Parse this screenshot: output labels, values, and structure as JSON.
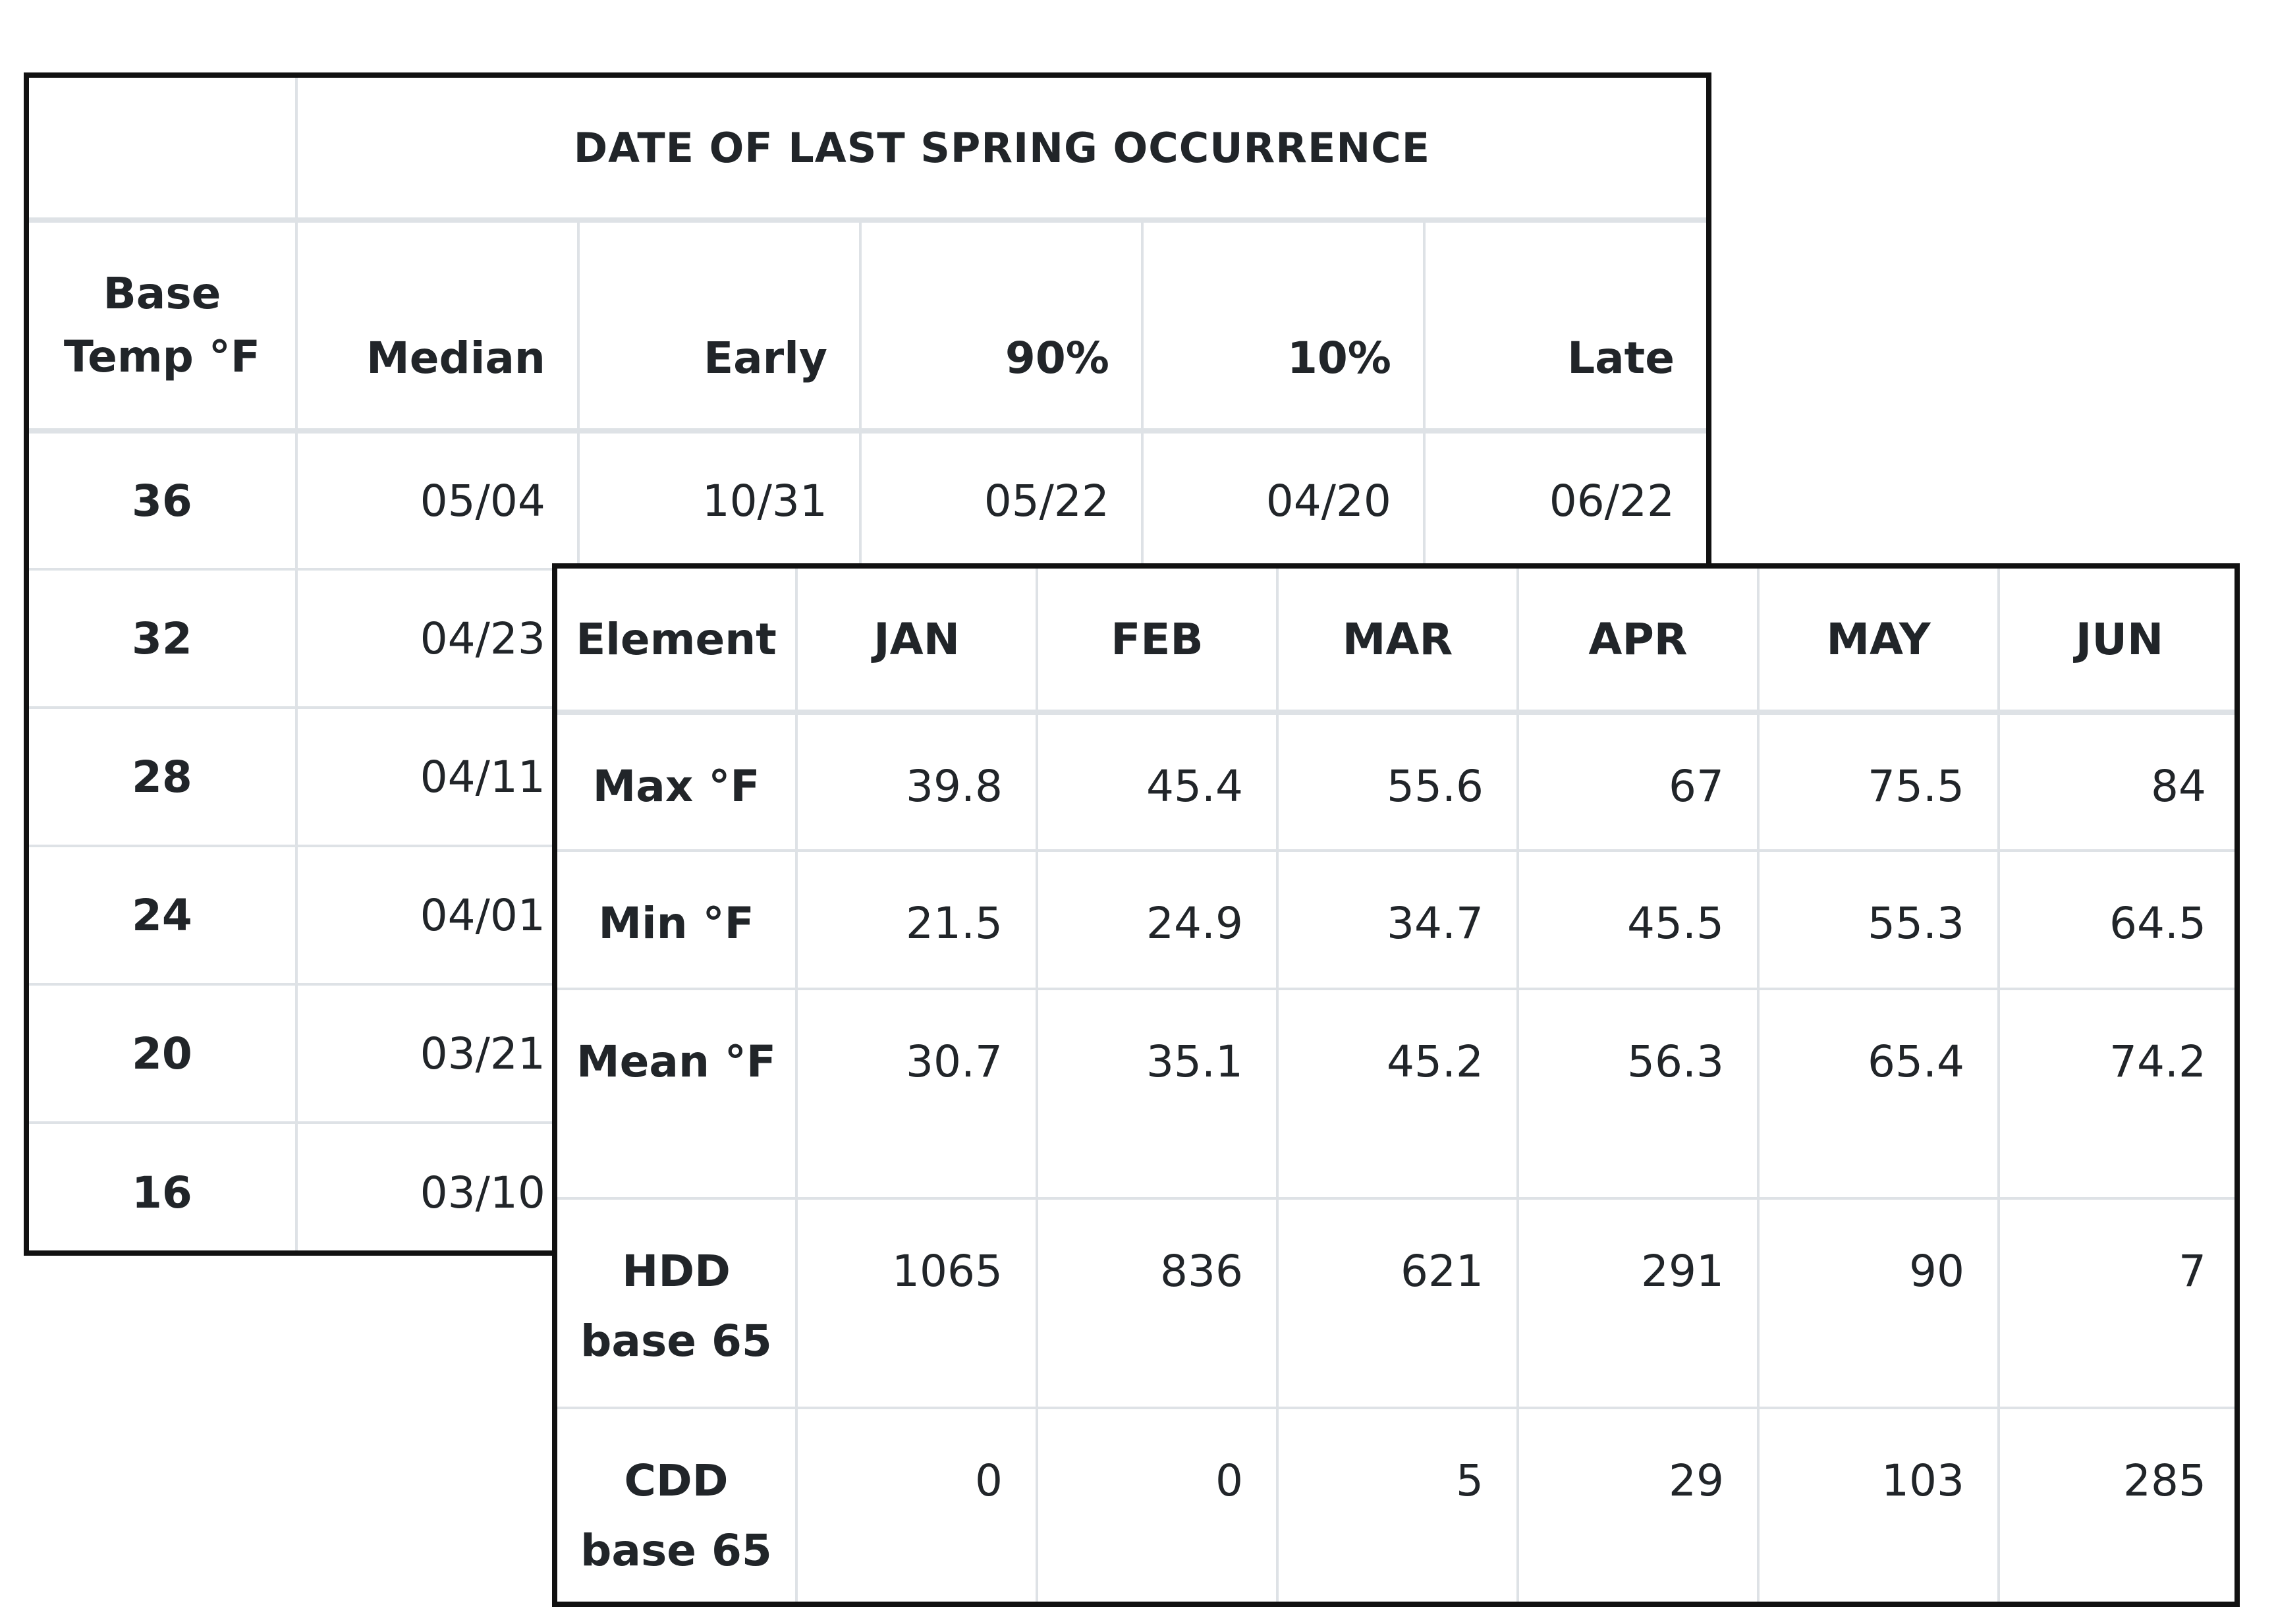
{
  "spring_table": {
    "title": "DATE OF LAST SPRING OCCURRENCE",
    "headers": {
      "base_line1": "Base",
      "base_line2": "Temp °F",
      "median": "Median",
      "early": "Early",
      "p90": "90%",
      "p10": "10%",
      "late": "Late"
    },
    "rows": [
      {
        "base": "36",
        "median": "05/04",
        "early": "10/31",
        "p90": "05/22",
        "p10": "04/20",
        "late": "06/22"
      },
      {
        "base": "32",
        "median": "04/23"
      },
      {
        "base": "28",
        "median": "04/11"
      },
      {
        "base": "24",
        "median": "04/01"
      },
      {
        "base": "20",
        "median": "03/21"
      },
      {
        "base": "16",
        "median": "03/10"
      }
    ]
  },
  "climate_table": {
    "headers": [
      "Element",
      "JAN",
      "FEB",
      "MAR",
      "APR",
      "MAY",
      "JUN"
    ],
    "rows": [
      {
        "label": "Max °F",
        "values": [
          "39.8",
          "45.4",
          "55.6",
          "67",
          "75.5",
          "84"
        ]
      },
      {
        "label": "Min °F",
        "values": [
          "21.5",
          "24.9",
          "34.7",
          "45.5",
          "55.3",
          "64.5"
        ]
      },
      {
        "label": "Mean °F",
        "values": [
          "30.7",
          "35.1",
          "45.2",
          "56.3",
          "65.4",
          "74.2"
        ]
      },
      {
        "label": "HDD base 65",
        "values": [
          "1065",
          "836",
          "621",
          "291",
          "90",
          "7"
        ]
      },
      {
        "label": "CDD base 65",
        "values": [
          "0",
          "0",
          "5",
          "29",
          "103",
          "285"
        ]
      }
    ]
  }
}
